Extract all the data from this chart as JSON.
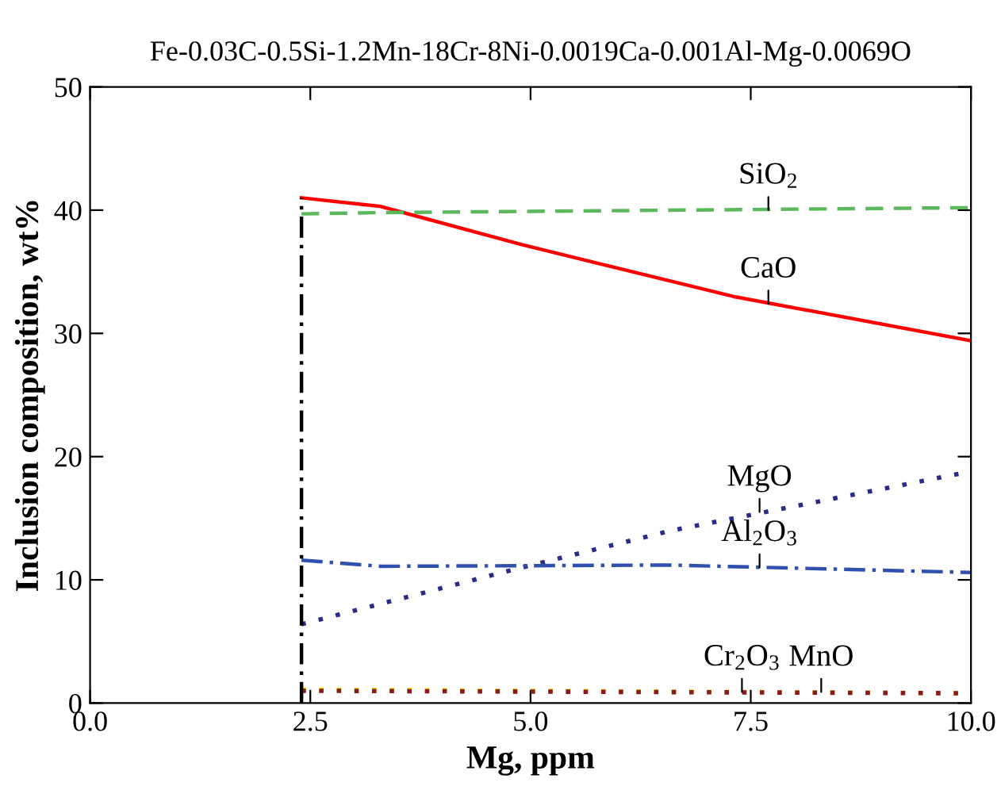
{
  "chart_data": {
    "type": "line",
    "title": "Fe-0.03C-0.5Si-1.2Mn-18Cr-8Ni-0.0019Ca-0.001Al-Mg-0.0069O",
    "xlabel": "Mg, ppm",
    "ylabel": "Inclusion composition, wt%",
    "xlim": [
      0,
      10
    ],
    "ylim": [
      0,
      50
    ],
    "xticks": [
      {
        "value": 0,
        "label": "0.0"
      },
      {
        "value": 2.5,
        "label": "2.5"
      },
      {
        "value": 5,
        "label": "5.0"
      },
      {
        "value": 7.5,
        "label": "7.5"
      },
      {
        "value": 10,
        "label": "10.0"
      }
    ],
    "yticks": [
      0,
      10,
      20,
      30,
      40,
      50
    ],
    "grid": false,
    "legend": false,
    "series": [
      {
        "color": "#ff0000",
        "line_style": "solid",
        "x": [
          2.4,
          3.3,
          4.9,
          7.3,
          10
        ],
        "values": [
          41,
          40.3,
          37.2,
          33.0,
          29.4
        ]
      },
      {
        "color": "#5cb85c",
        "line_style": "dashed",
        "x": [
          2.4,
          3.3,
          10
        ],
        "values": [
          39.7,
          39.8,
          40.2
        ]
      },
      {
        "color": "#2a2a8a",
        "line_style": "dotted",
        "x": [
          2.4,
          4.9,
          6.6,
          10
        ],
        "values": [
          6.4,
          11.0,
          14.0,
          18.8
        ]
      },
      {
        "color": "#3050b0",
        "line_style": "dashdot",
        "x": [
          2.4,
          3.3,
          6.6,
          10
        ],
        "values": [
          11.6,
          11.1,
          11.2,
          10.6
        ]
      },
      {
        "color": "#ffd700",
        "line_style": "dotted",
        "x": [
          2.4,
          10
        ],
        "values": [
          1.1,
          0.8
        ]
      },
      {
        "color": "#8b1a1a",
        "line_style": "dotted",
        "x": [
          2.4,
          10
        ],
        "values": [
          1.0,
          0.8
        ]
      },
      {
        "color": "#000000",
        "line_style": "dashdot",
        "x": [
          2.4,
          2.4
        ],
        "values": [
          0,
          41
        ]
      }
    ],
    "annotations": [
      {
        "text": "SiO$_{2}$",
        "x": 7.7,
        "y": 40.0
      },
      {
        "text": "CaO",
        "x": 7.7,
        "y": 32.4
      },
      {
        "text": "MgO",
        "x": 7.6,
        "y": 15.5
      },
      {
        "text": "Al$_{2}$O$_{3}$",
        "x": 7.6,
        "y": 11.0
      },
      {
        "text": "Cr$_{2}$O$_{3}$",
        "x": 7.4,
        "y": 0.9
      },
      {
        "text": "MnO",
        "x": 8.3,
        "y": 0.9
      }
    ]
  }
}
